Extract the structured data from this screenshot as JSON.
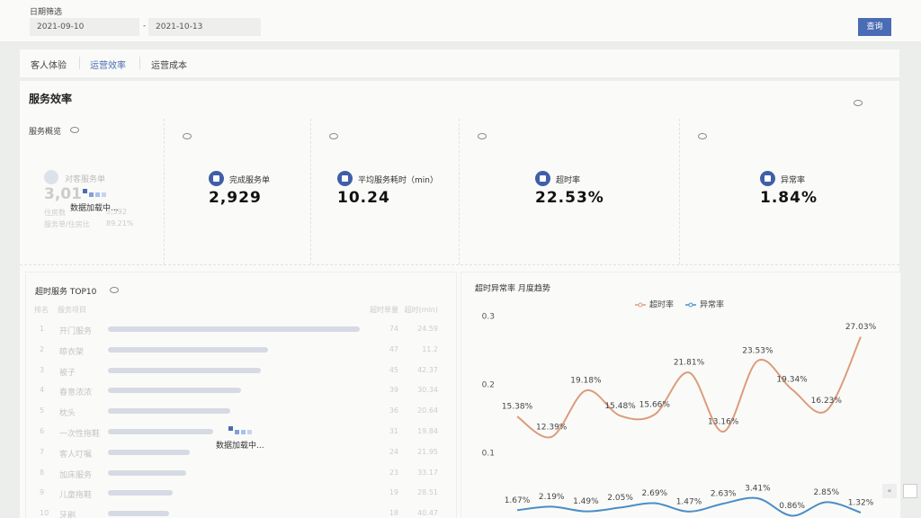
{
  "filter": {
    "label": "日期筛选",
    "start": "2021-09-10",
    "separator": "-",
    "end": "2021-10-13",
    "button": "查询"
  },
  "tabs": [
    "客人体验",
    "运营效率",
    "运营成本"
  ],
  "section_title": "服务效率",
  "overview": {
    "title": "服务概览",
    "loading_card": {
      "label": "对客服务单",
      "value": "3,01",
      "rows": [
        [
          "住房数",
          "3,392"
        ],
        [
          "服务单/住房比",
          "89.21%"
        ]
      ],
      "loading": "数据加载中..."
    },
    "cards": [
      {
        "label": "完成服务单",
        "value": "2,929"
      },
      {
        "label": "平均服务耗时（min）",
        "value": "10.24"
      },
      {
        "label": "超时率",
        "value": "22.53%"
      },
      {
        "label": "异常率",
        "value": "1.84%"
      }
    ]
  },
  "top10": {
    "title": "超时服务 TOP10",
    "headers": [
      "排名",
      "服务项目",
      "超时单量",
      "超时(min)"
    ],
    "rows": [
      {
        "rank": 1,
        "name": "开门服务",
        "count": 74,
        "minutes": 24.59
      },
      {
        "rank": 2,
        "name": "晾衣架",
        "count": 47,
        "minutes": 11.2
      },
      {
        "rank": 3,
        "name": "被子",
        "count": 45,
        "minutes": 42.37
      },
      {
        "rank": 4,
        "name": "春意浓浓",
        "count": 39,
        "minutes": 30.34
      },
      {
        "rank": 5,
        "name": "枕头",
        "count": 36,
        "minutes": 20.64
      },
      {
        "rank": 6,
        "name": "一次性拖鞋",
        "count": 31,
        "minutes": 19.84
      },
      {
        "rank": 7,
        "name": "客人叮嘱",
        "count": 24,
        "minutes": 21.95
      },
      {
        "rank": 8,
        "name": "加床服务",
        "count": 23,
        "minutes": 33.17
      },
      {
        "rank": 9,
        "name": "儿童拖鞋",
        "count": 19,
        "minutes": 28.51
      },
      {
        "rank": 10,
        "name": "牙刷",
        "count": 18,
        "minutes": 40.47
      }
    ],
    "loading": "数据加载中..."
  },
  "chart_data": {
    "type": "line",
    "title": "超时异常率 月度趋势",
    "categories": [
      null,
      null,
      null,
      null,
      null,
      null,
      null,
      null,
      null,
      null,
      null
    ],
    "series": [
      {
        "name": "超时率",
        "color": "#dc9c7c",
        "values": [
          0.1538,
          0.1239,
          0.1918,
          0.1548,
          0.1566,
          0.2181,
          0.1316,
          0.2353,
          0.1934,
          0.1623,
          0.2703
        ],
        "value_labels": [
          "15.38%",
          "12.39%",
          "19.18%",
          "15.48%",
          "15.66%",
          "21.81%",
          "13.16%",
          "23.53%",
          "19.34%",
          "16.23%",
          "27.03%"
        ]
      },
      {
        "name": "异常率",
        "color": "#4b8dc8",
        "values": [
          0.0167,
          0.0219,
          0.0149,
          0.0205,
          0.0269,
          0.0147,
          0.0263,
          0.0341,
          0.0086,
          0.0285,
          0.0132
        ],
        "value_labels": [
          "1.67%",
          "2.19%",
          "1.49%",
          "2.05%",
          "2.69%",
          "1.47%",
          "2.63%",
          "3.41%",
          "0.86%",
          "2.85%",
          "1.32%"
        ]
      }
    ],
    "ylim": [
      0,
      0.3
    ],
    "yticks": [
      0.1,
      0.2,
      0.3
    ]
  }
}
